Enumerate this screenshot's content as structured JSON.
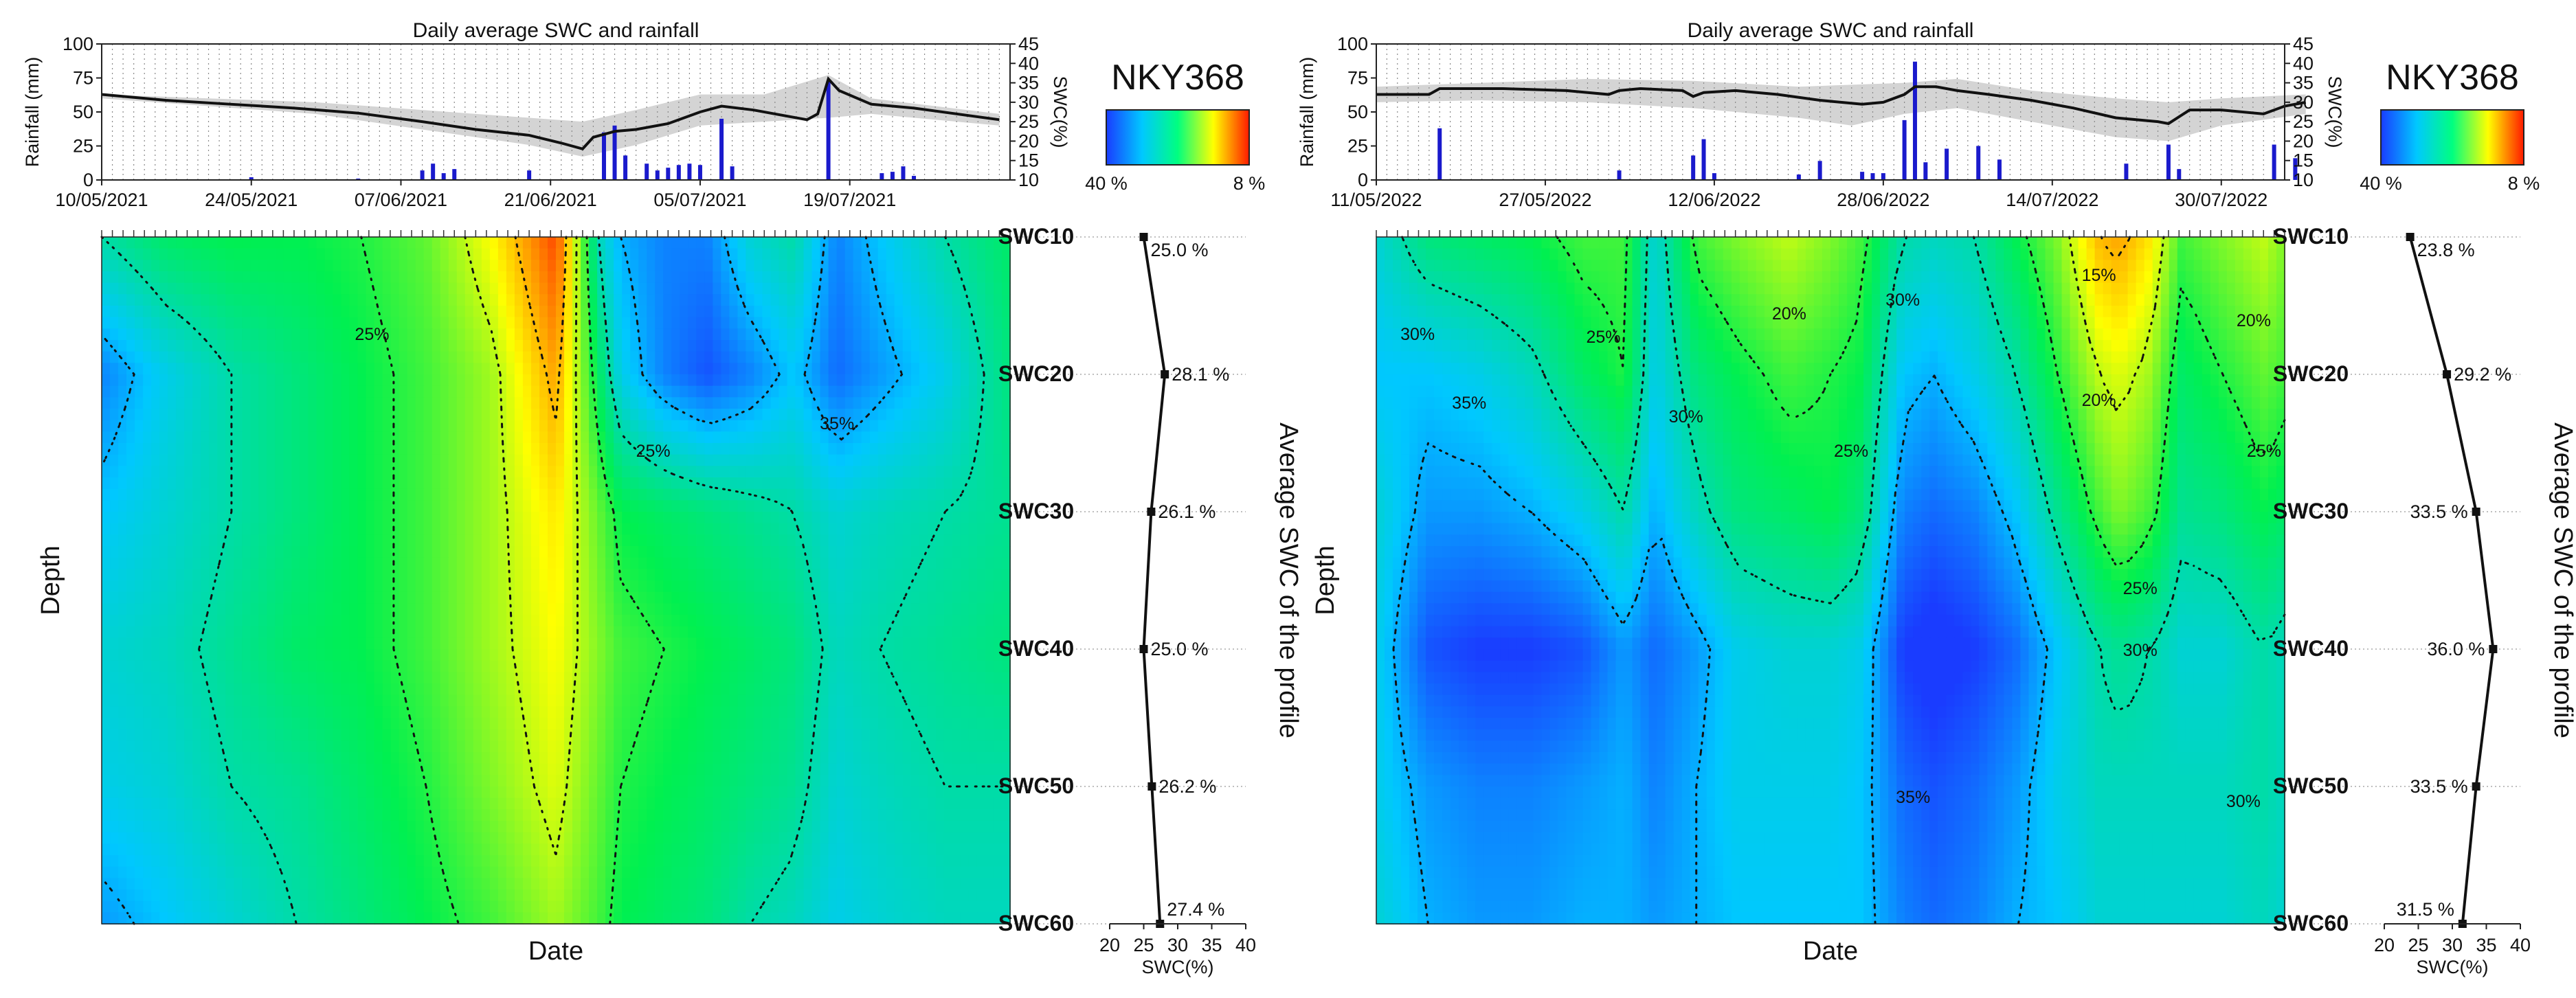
{
  "colors": {
    "rain_bars": "#1a1acc",
    "swc_line": "#111111",
    "band": "#d4d4d4",
    "contour": "#111111",
    "scale": [
      "#1a3cff",
      "#00c8ff",
      "#00ff80",
      "#ffff00",
      "#ff1a00"
    ]
  },
  "chart_data": [
    {
      "type": "heatmap",
      "station": "NKY368",
      "top_chart": {
        "type": "bar+line",
        "title": "Daily average SWC and rainfall",
        "ylabel_left": "Rainfall (mm)",
        "ylabel_right": "SWC(%)",
        "left_ticks": [
          "0",
          "25",
          "50",
          "75",
          "100"
        ],
        "left_ylim": [
          0,
          100
        ],
        "right_ticks": [
          "10",
          "15",
          "20",
          "25",
          "30",
          "35",
          "40",
          "45"
        ],
        "right_ylim": [
          10,
          45
        ],
        "date_labels": [
          "10/05/2021",
          "24/05/2021",
          "07/06/2021",
          "21/06/2021",
          "05/07/2021",
          "19/07/2021"
        ],
        "n_days": 85,
        "rain_bars": [
          [
            14,
            2
          ],
          [
            24,
            1
          ],
          [
            30,
            7
          ],
          [
            31,
            12
          ],
          [
            32,
            5
          ],
          [
            33,
            8
          ],
          [
            40,
            7
          ],
          [
            47,
            35
          ],
          [
            48,
            40
          ],
          [
            49,
            18
          ],
          [
            51,
            12
          ],
          [
            52,
            7
          ],
          [
            53,
            9
          ],
          [
            54,
            11
          ],
          [
            55,
            12
          ],
          [
            56,
            11
          ],
          [
            58,
            45
          ],
          [
            59,
            10
          ],
          [
            68,
            73
          ],
          [
            73,
            5
          ],
          [
            74,
            6
          ],
          [
            75,
            10
          ],
          [
            76,
            3
          ]
        ],
        "swc_line": [
          [
            0,
            32
          ],
          [
            6,
            30.5
          ],
          [
            12,
            29.5
          ],
          [
            18,
            28.5
          ],
          [
            24,
            27.2
          ],
          [
            30,
            25
          ],
          [
            35,
            23
          ],
          [
            40,
            21.5
          ],
          [
            43,
            19.5
          ],
          [
            45,
            18
          ],
          [
            46,
            21
          ],
          [
            48,
            22.5
          ],
          [
            50,
            23
          ],
          [
            53,
            24.5
          ],
          [
            56,
            27.5
          ],
          [
            58,
            29
          ],
          [
            61,
            28
          ],
          [
            64,
            26.5
          ],
          [
            66,
            25.5
          ],
          [
            67,
            27
          ],
          [
            68,
            36
          ],
          [
            69,
            33
          ],
          [
            72,
            29.5
          ],
          [
            76,
            28.5
          ],
          [
            80,
            27
          ],
          [
            84,
            25.5
          ]
        ],
        "band_top": [
          [
            0,
            32
          ],
          [
            10,
            31
          ],
          [
            20,
            30
          ],
          [
            30,
            28
          ],
          [
            40,
            26
          ],
          [
            45,
            25
          ],
          [
            50,
            28
          ],
          [
            56,
            32
          ],
          [
            62,
            32
          ],
          [
            68,
            37
          ],
          [
            72,
            31
          ],
          [
            84,
            27
          ]
        ],
        "band_bottom": [
          [
            0,
            31
          ],
          [
            10,
            29
          ],
          [
            20,
            27
          ],
          [
            30,
            23
          ],
          [
            40,
            19
          ],
          [
            45,
            16
          ],
          [
            50,
            19
          ],
          [
            56,
            24
          ],
          [
            62,
            25
          ],
          [
            68,
            26
          ],
          [
            72,
            27
          ],
          [
            84,
            24
          ]
        ]
      },
      "colorbar": {
        "left_label": "40 %",
        "right_label": "8 %"
      },
      "heatmap": {
        "xlabel": "Date",
        "ylabel": "Depth",
        "depths": [
          "SWC10",
          "SWC20",
          "SWC30",
          "SWC40",
          "SWC50",
          "SWC60"
        ],
        "x": [
          0,
          6,
          12,
          18,
          24,
          30,
          36,
          42,
          46,
          48,
          52,
          56,
          60,
          64,
          68,
          72,
          78,
          84
        ],
        "swc": [
          [
            30,
            27,
            26,
            26,
            25,
            23,
            18,
            10,
            31,
            35,
            37,
            37,
            32,
            30,
            37,
            34,
            30,
            27
          ],
          [
            37,
            33,
            30,
            28,
            26,
            24,
            21,
            14,
            27,
            33,
            37,
            39,
            37,
            34,
            38,
            36,
            33,
            28
          ],
          [
            34,
            32,
            30,
            28,
            26,
            24,
            21,
            17,
            23,
            26,
            27,
            28,
            29,
            30,
            32,
            31,
            30,
            29
          ],
          [
            32,
            31,
            29,
            27,
            26,
            24,
            21,
            18,
            22,
            24,
            25,
            26,
            27,
            28,
            31,
            30,
            29,
            28
          ],
          [
            33,
            32,
            30,
            29,
            27,
            25,
            22,
            19,
            23,
            25,
            26,
            27,
            28,
            29,
            32,
            31,
            30,
            30
          ],
          [
            36,
            34,
            32,
            30,
            28,
            26,
            24,
            21,
            24,
            26,
            27,
            28,
            30,
            31,
            33,
            32,
            31,
            31
          ]
        ],
        "contour_labels": [
          {
            "text": "25%",
            "x": 25,
            "depth": 0.7
          },
          {
            "text": "25%",
            "x": 51,
            "depth": 1.55
          },
          {
            "text": "35%",
            "x": 68,
            "depth": 1.35
          }
        ]
      },
      "profile": {
        "xlabel": "SWC(%)",
        "ylabel": "Average SWC of the profile",
        "x_ticks": [
          "20",
          "25",
          "30",
          "35",
          "40"
        ],
        "xlim": [
          20,
          40
        ],
        "values": [
          25.0,
          28.1,
          26.1,
          25.0,
          26.2,
          27.4
        ],
        "labels": [
          "25.0 %",
          "28.1 %",
          "26.1 %",
          "25.0 %",
          "26.2 %",
          "27.4 %"
        ]
      }
    },
    {
      "type": "heatmap",
      "station": "NKY368",
      "top_chart": {
        "type": "bar+line",
        "title": "Daily average SWC and rainfall",
        "ylabel_left": "Rainfall (mm)",
        "ylabel_right": "SWC(%)",
        "left_ticks": [
          "0",
          "25",
          "50",
          "75",
          "100"
        ],
        "left_ylim": [
          0,
          100
        ],
        "right_ticks": [
          "10",
          "15",
          "20",
          "25",
          "30",
          "35",
          "40",
          "45"
        ],
        "right_ylim": [
          10,
          45
        ],
        "date_labels": [
          "11/05/2022",
          "27/05/2022",
          "12/06/2022",
          "28/06/2022",
          "14/07/2022",
          "30/07/2022"
        ],
        "n_days": 86,
        "rain_bars": [
          [
            6,
            38
          ],
          [
            23,
            7
          ],
          [
            30,
            18
          ],
          [
            31,
            30
          ],
          [
            32,
            5
          ],
          [
            40,
            4
          ],
          [
            42,
            14
          ],
          [
            46,
            6
          ],
          [
            47,
            5
          ],
          [
            48,
            5
          ],
          [
            50,
            44
          ],
          [
            51,
            87
          ],
          [
            52,
            13
          ],
          [
            54,
            23
          ],
          [
            57,
            25
          ],
          [
            59,
            15
          ],
          [
            71,
            12
          ],
          [
            75,
            26
          ],
          [
            76,
            8
          ],
          [
            85,
            26
          ],
          [
            87,
            16
          ]
        ],
        "swc_line": [
          [
            0,
            32
          ],
          [
            5,
            32
          ],
          [
            6,
            33.5
          ],
          [
            12,
            33.5
          ],
          [
            18,
            33
          ],
          [
            22,
            32
          ],
          [
            23,
            33
          ],
          [
            25,
            33.5
          ],
          [
            29,
            33
          ],
          [
            30,
            31.5
          ],
          [
            31,
            32.5
          ],
          [
            34,
            33
          ],
          [
            38,
            32
          ],
          [
            42,
            30.5
          ],
          [
            46,
            29.5
          ],
          [
            48,
            30
          ],
          [
            50,
            32
          ],
          [
            51,
            34
          ],
          [
            53,
            34
          ],
          [
            55,
            33
          ],
          [
            58,
            32
          ],
          [
            62,
            30.5
          ],
          [
            66,
            28.5
          ],
          [
            70,
            26
          ],
          [
            74,
            25
          ],
          [
            75,
            24.5
          ],
          [
            77,
            28
          ],
          [
            80,
            28
          ],
          [
            84,
            27
          ],
          [
            86,
            29
          ],
          [
            88,
            30
          ]
        ],
        "band_top": [
          [
            0,
            34
          ],
          [
            10,
            35
          ],
          [
            20,
            36
          ],
          [
            30,
            35.5
          ],
          [
            40,
            34
          ],
          [
            50,
            35
          ],
          [
            55,
            36
          ],
          [
            62,
            33
          ],
          [
            70,
            31
          ],
          [
            75,
            30
          ],
          [
            80,
            31
          ],
          [
            88,
            32
          ]
        ],
        "band_bottom": [
          [
            0,
            30
          ],
          [
            10,
            30.5
          ],
          [
            20,
            30
          ],
          [
            30,
            28.5
          ],
          [
            40,
            26
          ],
          [
            45,
            24
          ],
          [
            50,
            27
          ],
          [
            55,
            28.5
          ],
          [
            62,
            25
          ],
          [
            70,
            21
          ],
          [
            75,
            20
          ],
          [
            80,
            24
          ],
          [
            88,
            27
          ]
        ]
      },
      "colorbar": {
        "left_label": "40 %",
        "right_label": "8 %"
      },
      "heatmap": {
        "xlabel": "Date",
        "ylabel": "Depth",
        "depths": [
          "SWC10",
          "SWC20",
          "SWC30",
          "SWC40",
          "SWC50",
          "SWC60"
        ],
        "x": [
          0,
          5,
          10,
          15,
          20,
          24,
          27,
          31,
          35,
          40,
          44,
          47,
          51,
          54,
          58,
          62,
          66,
          70,
          72,
          75,
          78,
          82,
          86,
          88
        ],
        "swc": [
          [
            32,
            28,
            27,
            26,
            24,
            24,
            32,
            24,
            22,
            20,
            22,
            24,
            30,
            31,
            30,
            26,
            22,
            15,
            14,
            17,
            24,
            22,
            20,
            22
          ],
          [
            34,
            34,
            33,
            31,
            27,
            25,
            33,
            28,
            26,
            24,
            25,
            26,
            34,
            35,
            33,
            30,
            25,
            20,
            19,
            21,
            27,
            25,
            23,
            24
          ],
          [
            32,
            36,
            36,
            35,
            33,
            30,
            35,
            31,
            28,
            27,
            26,
            28,
            37,
            38,
            37,
            34,
            29,
            24,
            22,
            24,
            29,
            28,
            26,
            27
          ],
          [
            33,
            39,
            40,
            40,
            39,
            36,
            38,
            36,
            33,
            32,
            32,
            33,
            40,
            41,
            40,
            38,
            34,
            30,
            29,
            30,
            32,
            32,
            30,
            31
          ],
          [
            33,
            36,
            37,
            37,
            36,
            35,
            37,
            35,
            33,
            33,
            33,
            34,
            38,
            39,
            38,
            36,
            33,
            31,
            31,
            31,
            31,
            31,
            30,
            31
          ],
          [
            32,
            35,
            36,
            36,
            35,
            35,
            36,
            35,
            34,
            34,
            34,
            34,
            37,
            38,
            37,
            35,
            34,
            32,
            32,
            32,
            32,
            32,
            31,
            32
          ]
        ],
        "contour_labels": [
          {
            "text": "30%",
            "x": 4,
            "depth": 0.7
          },
          {
            "text": "25%",
            "x": 22,
            "depth": 0.72
          },
          {
            "text": "35%",
            "x": 9,
            "depth": 1.2
          },
          {
            "text": "30%",
            "x": 30,
            "depth": 1.3
          },
          {
            "text": "20%",
            "x": 40,
            "depth": 0.55
          },
          {
            "text": "30%",
            "x": 51,
            "depth": 0.45
          },
          {
            "text": "25%",
            "x": 46,
            "depth": 1.55
          },
          {
            "text": "15%",
            "x": 70,
            "depth": 0.27
          },
          {
            "text": "20%",
            "x": 70,
            "depth": 1.18
          },
          {
            "text": "20%",
            "x": 85,
            "depth": 0.6
          },
          {
            "text": "25%",
            "x": 86,
            "depth": 1.55
          },
          {
            "text": "25%",
            "x": 74,
            "depth": 2.55
          },
          {
            "text": "30%",
            "x": 74,
            "depth": 3.0
          },
          {
            "text": "35%",
            "x": 52,
            "depth": 4.07
          },
          {
            "text": "30%",
            "x": 84,
            "depth": 4.1
          }
        ]
      },
      "profile": {
        "xlabel": "SWC(%)",
        "ylabel": "Average SWC of the profile",
        "x_ticks": [
          "20",
          "25",
          "30",
          "35",
          "40"
        ],
        "xlim": [
          20,
          40
        ],
        "values": [
          23.8,
          29.2,
          33.5,
          36.0,
          33.5,
          31.5
        ],
        "labels": [
          "23.8 %",
          "29.2 %",
          "33.5 %",
          "36.0 %",
          "33.5 %",
          "31.5 %"
        ]
      }
    }
  ]
}
